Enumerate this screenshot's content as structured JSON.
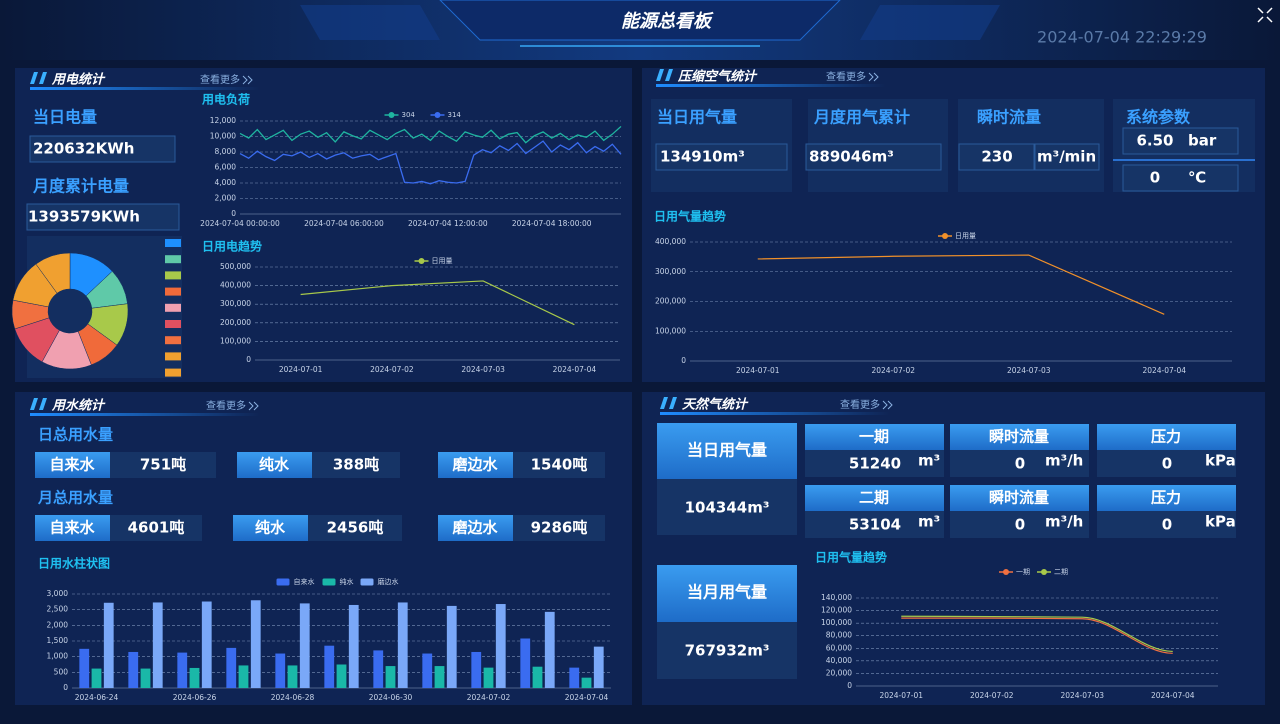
{
  "header": {
    "title": "能源总看板",
    "datetime": "2024-07-04 22:29:29"
  },
  "electricity": {
    "title": "用电统计",
    "more": "查看更多",
    "daily_label": "当日电量",
    "daily_value": "220632KWh",
    "monthly_label": "月度累计电量",
    "monthly_value": "1393579KWh"
  },
  "air": {
    "title": "压缩空气统计",
    "more": "查看更多",
    "cards": [
      {
        "label": "当日用气量",
        "value": "134910m³"
      },
      {
        "label": "月度用气累计",
        "value": "889046m³"
      },
      {
        "label": "瞬时流量",
        "value": "230",
        "unit": "m³/min"
      }
    ],
    "params": {
      "label": "系统参数",
      "pressure": "6.50",
      "pressure_unit": "bar",
      "temperature": "0",
      "temperature_unit": "℃"
    }
  },
  "water": {
    "title": "用水统计",
    "more": "查看更多",
    "groups": [
      {
        "label": "日总用水量",
        "items": [
          {
            "name": "自来水",
            "value": "751吨"
          },
          {
            "name": "纯水",
            "value": "388吨"
          },
          {
            "name": "磨边水",
            "value": "1540吨"
          }
        ]
      },
      {
        "label": "月总用水量",
        "items": [
          {
            "name": "自来水",
            "value": "4601吨"
          },
          {
            "name": "纯水",
            "value": "2456吨"
          },
          {
            "name": "磨边水",
            "value": "9286吨"
          }
        ]
      }
    ]
  },
  "gas": {
    "title": "天然气统计",
    "more": "查看更多",
    "daily": {
      "label": "当日用气量",
      "value": "104344m³"
    },
    "monthly": {
      "label": "当月用气量",
      "value": "767932m³"
    },
    "rows": [
      [
        {
          "label": "一期",
          "value": "51240",
          "unit": "m³"
        },
        {
          "label": "瞬时流量",
          "value": "0",
          "unit": "m³/h"
        },
        {
          "label": "压力",
          "value": "0",
          "unit": "kPa"
        }
      ],
      [
        {
          "label": "二期",
          "value": "53104",
          "unit": "m³"
        },
        {
          "label": "瞬时流量",
          "value": "0",
          "unit": "m³/h"
        },
        {
          "label": "压力",
          "value": "0",
          "unit": "kPa"
        }
      ]
    ]
  },
  "chart_data": [
    {
      "type": "pie",
      "values": [
        13,
        10,
        12,
        9,
        14,
        12,
        8,
        12,
        10
      ],
      "colors": [
        "#1e90ff",
        "#5fc9a8",
        "#a8c94a",
        "#f06a3a",
        "#f0a0b0",
        "#e05060",
        "#f07040",
        "#f0a030",
        "#f0a030"
      ]
    },
    {
      "type": "line",
      "title": "用电负荷",
      "legend": "top",
      "grid": true,
      "x": [
        "2024-07-04 00:00:00",
        "2024-07-04 00:30:00",
        "2024-07-04 01:00:00",
        "2024-07-04 01:30:00",
        "2024-07-04 02:00:00",
        "2024-07-04 02:30:00",
        "2024-07-04 03:00:00",
        "2024-07-04 03:30:00",
        "2024-07-04 04:00:00",
        "2024-07-04 04:30:00",
        "2024-07-04 05:00:00",
        "2024-07-04 05:30:00",
        "2024-07-04 06:00:00",
        "2024-07-04 06:30:00",
        "2024-07-04 07:00:00",
        "2024-07-04 07:30:00",
        "2024-07-04 08:00:00",
        "2024-07-04 08:30:00",
        "2024-07-04 09:00:00",
        "2024-07-04 09:30:00",
        "2024-07-04 10:00:00",
        "2024-07-04 10:30:00",
        "2024-07-04 11:00:00",
        "2024-07-04 11:30:00",
        "2024-07-04 12:00:00",
        "2024-07-04 12:30:00",
        "2024-07-04 13:00:00",
        "2024-07-04 13:30:00",
        "2024-07-04 14:00:00",
        "2024-07-04 14:30:00",
        "2024-07-04 15:00:00",
        "2024-07-04 15:30:00",
        "2024-07-04 16:00:00",
        "2024-07-04 16:30:00",
        "2024-07-04 17:00:00",
        "2024-07-04 17:30:00",
        "2024-07-04 18:00:00",
        "2024-07-04 18:30:00",
        "2024-07-04 19:00:00",
        "2024-07-04 19:30:00",
        "2024-07-04 20:00:00",
        "2024-07-04 20:30:00",
        "2024-07-04 21:00:00",
        "2024-07-04 21:30:00",
        "2024-07-04 22:00:00"
      ],
      "xticks": [
        "2024-07-04 00:00:00",
        "2024-07-04 06:00:00",
        "2024-07-04 12:00:00",
        "2024-07-04 18:00:00"
      ],
      "series": [
        {
          "name": "304",
          "color": "#1fb5a0",
          "values": [
            10400,
            9800,
            10900,
            9600,
            10200,
            10800,
            9500,
            10300,
            10700,
            9900,
            10500,
            9300,
            10600,
            10100,
            9700,
            10800,
            10200,
            9600,
            10400,
            10900,
            9800,
            10300,
            9500,
            10700,
            10000,
            9400,
            10600,
            10200,
            9900,
            10800,
            9700,
            10300,
            10500,
            9200,
            10100,
            10600,
            9800,
            10400,
            9600,
            10200,
            9900,
            10700,
            9500,
            10300,
            11300
          ]
        },
        {
          "name": "314",
          "color": "#3a6cf0",
          "values": [
            7800,
            7200,
            8100,
            7400,
            6900,
            7700,
            7500,
            8000,
            7300,
            7800,
            7100,
            7600,
            7900,
            7200,
            7500,
            7700,
            7000,
            7400,
            7800,
            4100,
            4000,
            4200,
            3900,
            4300,
            4100,
            4000,
            4200,
            7600,
            8300,
            7900,
            8800,
            8200,
            9100,
            7800,
            8600,
            9400,
            8000,
            8900,
            8300,
            9200,
            7900,
            8700,
            8100,
            9000,
            7700
          ]
        }
      ],
      "ylim": [
        0,
        12000
      ],
      "yticks": [
        0,
        {
          "value": 2000,
          "label": "2,000"
        },
        {
          "value": 4000,
          "label": "4,000"
        },
        {
          "value": 6000,
          "label": "6,000"
        },
        {
          "value": 8000,
          "label": "8,000"
        },
        {
          "value": 10000,
          "label": "10,000"
        },
        {
          "value": 12000,
          "label": "12,000"
        }
      ]
    },
    {
      "type": "line",
      "title": "日用电趋势",
      "legend": "top",
      "grid": true,
      "categories": [
        "2024-07-01",
        "2024-07-02",
        "2024-07-03",
        "2024-07-04"
      ],
      "series": [
        {
          "name": "日用量",
          "color": "#a8c94a",
          "values": [
            352000,
            400000,
            425000,
            190000
          ]
        }
      ],
      "ylim": [
        0,
        500000
      ],
      "yticks": [
        0,
        {
          "value": 100000,
          "label": "100,000"
        },
        {
          "value": 200000,
          "label": "200,000"
        },
        {
          "value": 300000,
          "label": "300,000"
        },
        {
          "value": 400000,
          "label": "400,000"
        },
        {
          "value": 500000,
          "label": "500,000"
        }
      ]
    },
    {
      "type": "line",
      "title": "日用气量趋势",
      "legend": "top",
      "grid": true,
      "categories": [
        "2024-07-01",
        "2024-07-02",
        "2024-07-03",
        "2024-07-04"
      ],
      "series": [
        {
          "name": "日用量",
          "color": "#f0902a",
          "values": [
            343000,
            352000,
            356000,
            157000
          ]
        }
      ],
      "ylim": [
        0,
        400000
      ],
      "yticks": [
        0,
        {
          "value": 100000,
          "label": "100,000"
        },
        {
          "value": 200000,
          "label": "200,000"
        },
        {
          "value": 300000,
          "label": "300,000"
        },
        {
          "value": 400000,
          "label": "400,000"
        }
      ]
    },
    {
      "type": "bar",
      "title": "日用水柱状图",
      "legend": "top",
      "grid": true,
      "categories": [
        "2024-06-24",
        null,
        "2024-06-26",
        null,
        "2024-06-28",
        null,
        "2024-06-30",
        null,
        "2024-07-02",
        null,
        "2024-07-04"
      ],
      "series": [
        {
          "name": "自来水",
          "color": "#3a6cf0",
          "values": [
            1250,
            1150,
            1130,
            1280,
            1100,
            1350,
            1200,
            1100,
            1150,
            1580,
            650
          ]
        },
        {
          "name": "纯水",
          "color": "#1ab8a8",
          "values": [
            620,
            620,
            640,
            720,
            720,
            750,
            700,
            700,
            650,
            680,
            330
          ]
        },
        {
          "name": "磨边水",
          "color": "#7aa8f8",
          "values": [
            2720,
            2730,
            2760,
            2800,
            2700,
            2650,
            2730,
            2620,
            2680,
            2430,
            1320
          ]
        }
      ],
      "ylim": [
        0,
        3000
      ],
      "yticks": [
        0,
        500,
        {
          "value": 1000,
          "label": "1,000"
        },
        {
          "value": 1500,
          "label": "1,500"
        },
        {
          "value": 2000,
          "label": "2,000"
        },
        {
          "value": 2500,
          "label": "2,500"
        },
        {
          "value": 3000,
          "label": "3,000"
        }
      ]
    },
    {
      "type": "line",
      "title": "日用气量趋势",
      "legend": "top",
      "grid": true,
      "smooth": true,
      "categories": [
        "2024-07-01",
        "2024-07-02",
        "2024-07-03",
        "2024-07-04"
      ],
      "series": [
        {
          "name": "一期",
          "color": "#f07040",
          "values": [
            108000,
            108000,
            107000,
            52000
          ]
        },
        {
          "name": "二期",
          "color": "#a8c94a",
          "values": [
            111000,
            110500,
            109500,
            55000
          ]
        }
      ],
      "ylim": [
        0,
        140000
      ],
      "yticks": [
        0,
        {
          "value": 20000,
          "label": "20,000"
        },
        {
          "value": 40000,
          "label": "40,000"
        },
        {
          "value": 60000,
          "label": "60,000"
        },
        {
          "value": 80000,
          "label": "80,000"
        },
        {
          "value": 100000,
          "label": "100,000"
        },
        {
          "value": 120000,
          "label": "120,000"
        },
        {
          "value": 140000,
          "label": "140,000"
        }
      ]
    }
  ]
}
